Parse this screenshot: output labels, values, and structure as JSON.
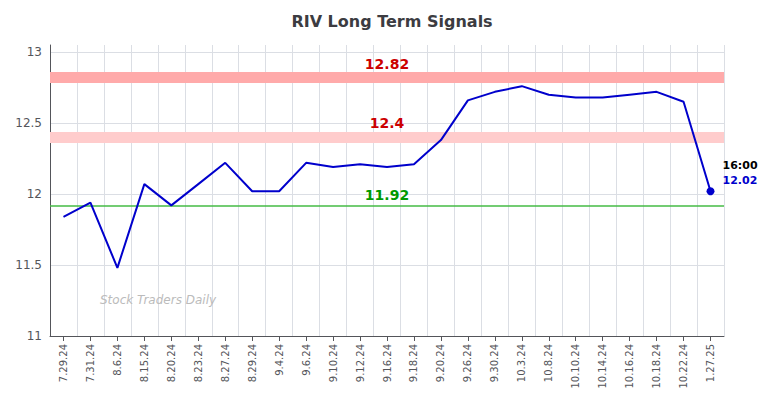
{
  "chart_data": {
    "type": "line",
    "title": "RIV Long Term Signals",
    "categories": [
      "7.29.24",
      "7.31.24",
      "8.6.24",
      "8.15.24",
      "8.20.24",
      "8.23.24",
      "8.27.24",
      "8.29.24",
      "9.4.24",
      "9.6.24",
      "9.10.24",
      "9.12.24",
      "9.16.24",
      "9.18.24",
      "9.20.24",
      "9.26.24",
      "9.30.24",
      "10.3.24",
      "10.8.24",
      "10.10.24",
      "10.14.24",
      "10.16.24",
      "10.18.24",
      "10.22.24",
      "1.27.25"
    ],
    "values": [
      11.84,
      11.94,
      11.48,
      12.07,
      11.92,
      12.07,
      12.22,
      12.02,
      12.02,
      12.22,
      12.19,
      12.21,
      12.19,
      12.21,
      12.38,
      12.66,
      12.72,
      12.76,
      12.7,
      12.68,
      12.68,
      12.7,
      12.72,
      12.65,
      12.02
    ],
    "color": "#0000cc",
    "ylim": [
      11.0,
      13.05
    ],
    "yticks": [
      11,
      11.5,
      12,
      12.5,
      13
    ],
    "grid": true,
    "reference_lines": [
      {
        "value": 12.82,
        "label": "12.82",
        "color": "#ffaaaa",
        "label_color": "#cc0000",
        "line_style": "band"
      },
      {
        "value": 12.4,
        "label": "12.4",
        "color": "#ffcccc",
        "label_color": "#cc0000",
        "line_style": "band"
      },
      {
        "value": 11.92,
        "label": "11.92",
        "color": "#44bb44",
        "label_color": "#009900",
        "line_style": "solid"
      }
    ],
    "last_point_labels": [
      {
        "text": "16:00",
        "color": "#000000"
      },
      {
        "text": "12.02",
        "color": "#0000cc"
      }
    ],
    "watermark": "Stock Traders Daily"
  }
}
